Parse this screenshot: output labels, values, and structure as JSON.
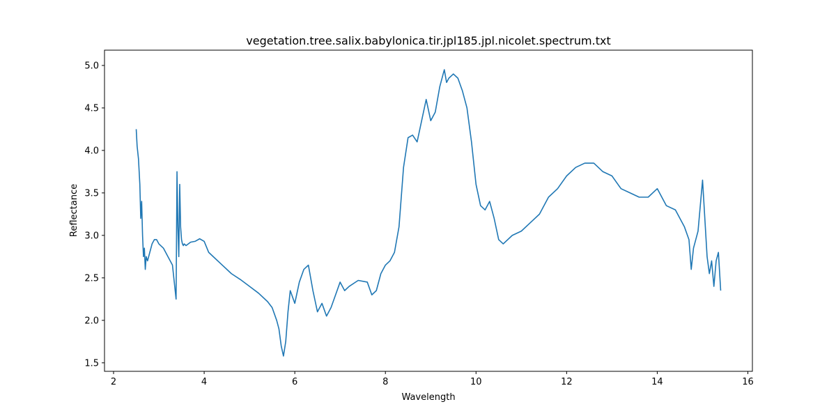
{
  "chart_data": {
    "type": "line",
    "title": "vegetation.tree.salix.babylonica.tir.jpl185.jpl.nicolet.spectrum.txt",
    "xlabel": "Wavelength",
    "ylabel": "Reflectance",
    "xlim": [
      1.8,
      16.1
    ],
    "ylim": [
      1.4,
      5.18
    ],
    "xticks": [
      2,
      4,
      6,
      8,
      10,
      12,
      14,
      16
    ],
    "yticks": [
      1.5,
      2.0,
      2.5,
      3.0,
      3.5,
      4.0,
      4.5,
      5.0
    ],
    "grid": false,
    "line_color": "#1f77b4",
    "series": [
      {
        "x": [
          2.5,
          2.52,
          2.55,
          2.58,
          2.6,
          2.62,
          2.64,
          2.66,
          2.68,
          2.7,
          2.72,
          2.75,
          2.8,
          2.85,
          2.9,
          2.95,
          3.0,
          3.1,
          3.2,
          3.3,
          3.36,
          3.38,
          3.4,
          3.42,
          3.44,
          3.46,
          3.48,
          3.5,
          3.52,
          3.54,
          3.56,
          3.6,
          3.7,
          3.8,
          3.9,
          4.0,
          4.1,
          4.2,
          4.4,
          4.6,
          4.8,
          5.0,
          5.2,
          5.4,
          5.5,
          5.6,
          5.65,
          5.7,
          5.75,
          5.8,
          5.85,
          5.9,
          6.0,
          6.1,
          6.2,
          6.3,
          6.4,
          6.5,
          6.6,
          6.7,
          6.8,
          6.9,
          7.0,
          7.1,
          7.2,
          7.4,
          7.6,
          7.7,
          7.8,
          7.9,
          8.0,
          8.1,
          8.2,
          8.3,
          8.4,
          8.5,
          8.6,
          8.7,
          8.8,
          8.9,
          9.0,
          9.1,
          9.2,
          9.3,
          9.35,
          9.4,
          9.5,
          9.6,
          9.7,
          9.8,
          9.9,
          10.0,
          10.1,
          10.2,
          10.3,
          10.4,
          10.5,
          10.6,
          10.8,
          11.0,
          11.2,
          11.4,
          11.6,
          11.8,
          12.0,
          12.2,
          12.4,
          12.6,
          12.8,
          13.0,
          13.2,
          13.4,
          13.6,
          13.8,
          14.0,
          14.2,
          14.4,
          14.6,
          14.7,
          14.75,
          14.8,
          14.9,
          15.0,
          15.05,
          15.1,
          15.15,
          15.2,
          15.25,
          15.3,
          15.35,
          15.4
        ],
        "y": [
          4.25,
          4.05,
          3.9,
          3.6,
          3.2,
          3.4,
          3.0,
          2.75,
          2.85,
          2.6,
          2.75,
          2.7,
          2.8,
          2.9,
          2.95,
          2.95,
          2.9,
          2.85,
          2.75,
          2.65,
          2.35,
          2.25,
          3.75,
          3.1,
          2.75,
          3.6,
          3.1,
          2.95,
          2.9,
          2.88,
          2.9,
          2.88,
          2.92,
          2.93,
          2.96,
          2.93,
          2.8,
          2.75,
          2.65,
          2.55,
          2.48,
          2.4,
          2.32,
          2.22,
          2.15,
          2.0,
          1.9,
          1.7,
          1.58,
          1.75,
          2.1,
          2.35,
          2.2,
          2.45,
          2.6,
          2.65,
          2.35,
          2.1,
          2.2,
          2.05,
          2.15,
          2.3,
          2.45,
          2.35,
          2.4,
          2.47,
          2.45,
          2.3,
          2.35,
          2.55,
          2.65,
          2.7,
          2.8,
          3.1,
          3.8,
          4.15,
          4.18,
          4.1,
          4.35,
          4.6,
          4.35,
          4.45,
          4.75,
          4.95,
          4.8,
          4.85,
          4.9,
          4.85,
          4.7,
          4.5,
          4.1,
          3.6,
          3.35,
          3.3,
          3.4,
          3.2,
          2.95,
          2.9,
          3.0,
          3.05,
          3.15,
          3.25,
          3.45,
          3.55,
          3.7,
          3.8,
          3.85,
          3.85,
          3.75,
          3.7,
          3.55,
          3.5,
          3.45,
          3.45,
          3.55,
          3.35,
          3.3,
          3.1,
          2.95,
          2.6,
          2.85,
          3.05,
          3.65,
          3.2,
          2.75,
          2.55,
          2.7,
          2.4,
          2.7,
          2.8,
          2.35
        ]
      }
    ]
  }
}
